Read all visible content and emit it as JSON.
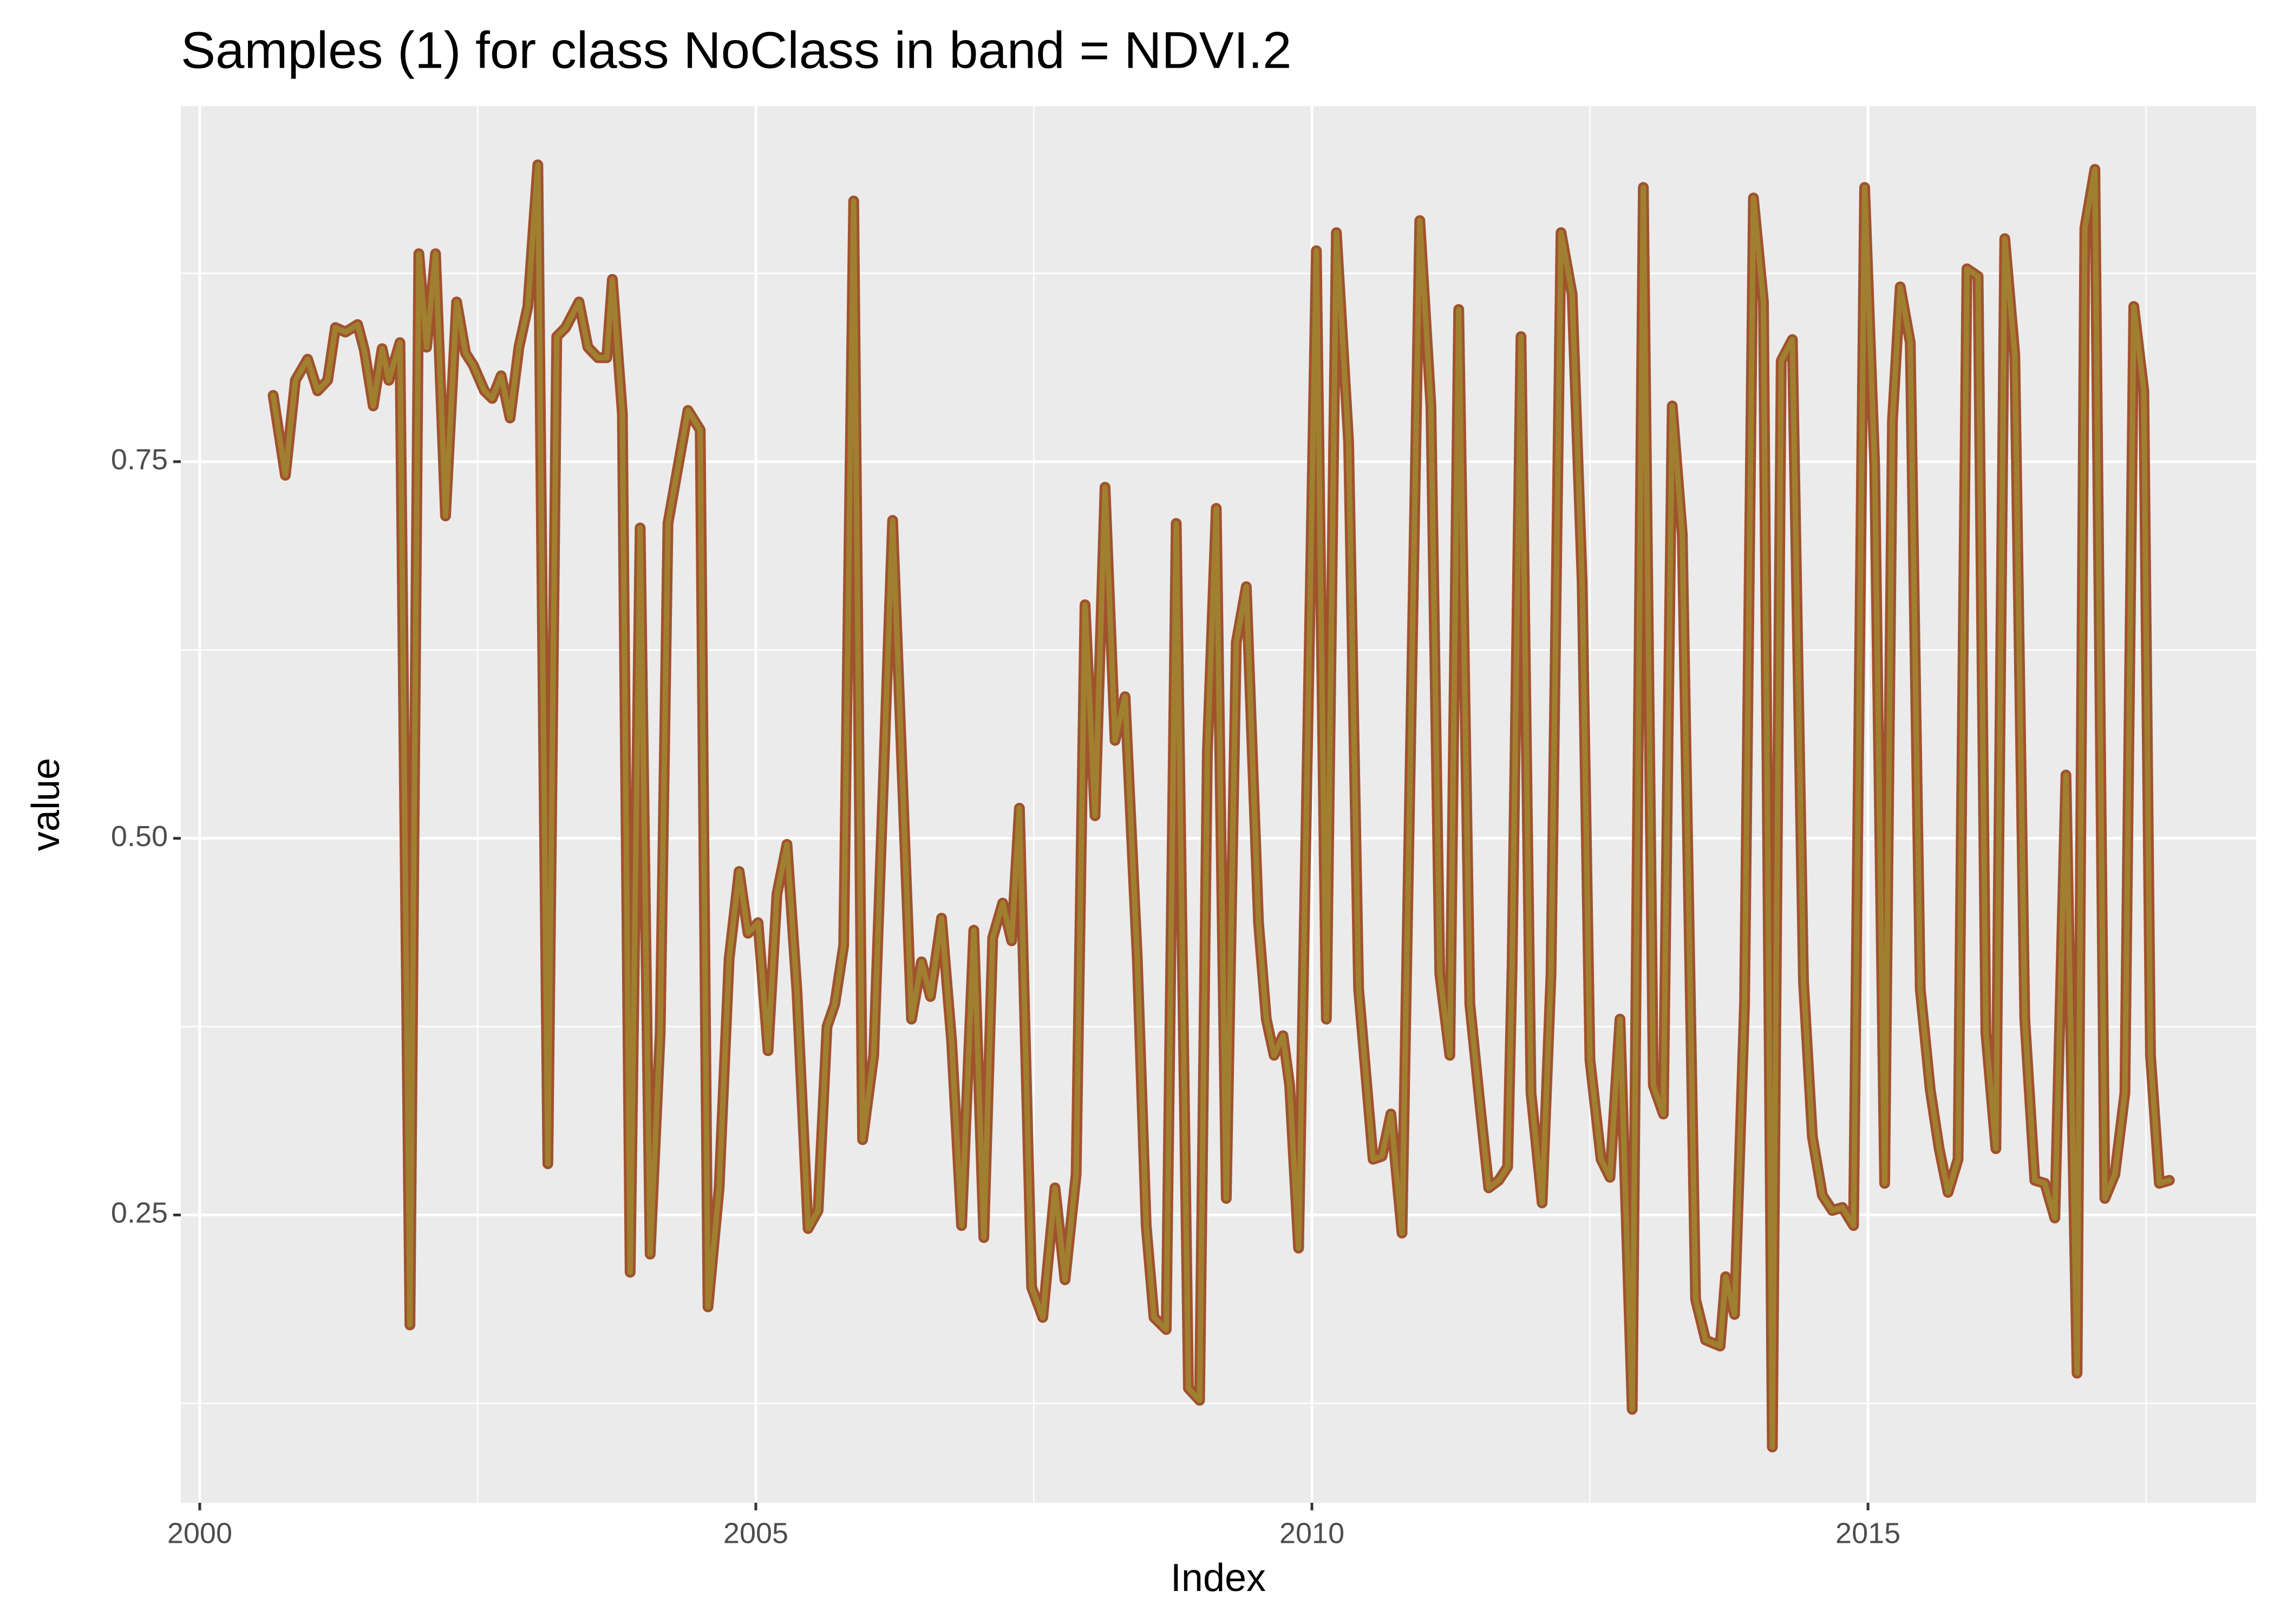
{
  "chart_data": {
    "type": "line",
    "title": "Samples (1) for class NoClass in band = NDVI.2",
    "xlabel": "Index",
    "ylabel": "value",
    "xlim": [
      1999.83,
      2018.49
    ],
    "ylim": [
      0.059,
      0.986
    ],
    "xticks": [
      2000,
      2005,
      2010,
      2015
    ],
    "yticks": [
      0.25,
      {
        "value": 0.5,
        "label": "0.50"
      },
      0.75
    ],
    "x_minor_ticks": [
      2002.5,
      2007.5,
      2012.5,
      2017.5
    ],
    "y_minor_ticks": [
      0.125,
      0.375,
      0.625,
      0.875
    ],
    "grid": true,
    "series": [
      {
        "name": "NDVI.2",
        "color": "#a08030",
        "edge_color": "#a0522d",
        "x": [
          2000.66,
          2000.77,
          2000.86,
          2000.97,
          2001.06,
          2001.15,
          2001.22,
          2001.31,
          2001.42,
          2001.48,
          2001.56,
          2001.64,
          2001.7,
          2001.8,
          2001.89,
          2001.97,
          2002.04,
          2002.12,
          2002.21,
          2002.31,
          2002.39,
          2002.46,
          2002.56,
          2002.63,
          2002.71,
          2002.79,
          2002.87,
          2002.95,
          2003.04,
          2003.13,
          2003.21,
          2003.29,
          2003.41,
          2003.49,
          2003.58,
          2003.66,
          2003.71,
          2003.8,
          2003.87,
          2003.96,
          2004.05,
          2004.14,
          2004.21,
          2004.39,
          2004.5,
          2004.57,
          2004.67,
          2004.76,
          2004.85,
          2004.93,
          2005.02,
          2005.11,
          2005.19,
          2005.28,
          2005.37,
          2005.47,
          2005.56,
          2005.64,
          2005.71,
          2005.79,
          2005.88,
          2005.96,
          2006.06,
          2006.23,
          2006.4,
          2006.49,
          2006.57,
          2006.67,
          2006.76,
          2006.85,
          2006.96,
          2007.05,
          2007.13,
          2007.22,
          2007.3,
          2007.37,
          2007.48,
          2007.58,
          2007.69,
          2007.78,
          2007.88,
          2007.96,
          2008.05,
          2008.14,
          2008.23,
          2008.32,
          2008.43,
          2008.51,
          2008.58,
          2008.69,
          2008.78,
          2008.89,
          2008.99,
          2009.06,
          2009.14,
          2009.23,
          2009.32,
          2009.41,
          2009.52,
          2009.59,
          2009.66,
          2009.74,
          2009.8,
          2009.88,
          2010.04,
          2010.13,
          2010.22,
          2010.33,
          2010.42,
          2010.55,
          2010.63,
          2010.71,
          2010.81,
          2010.97,
          2011.07,
          2011.15,
          2011.24,
          2011.32,
          2011.42,
          2011.51,
          2011.59,
          2011.68,
          2011.76,
          2011.8,
          2011.88,
          2011.97,
          2012.07,
          2012.15,
          2012.24,
          2012.34,
          2012.43,
          2012.5,
          2012.6,
          2012.68,
          2012.77,
          2012.88,
          2012.98,
          2013.07,
          2013.16,
          2013.24,
          2013.33,
          2013.45,
          2013.54,
          2013.67,
          2013.72,
          2013.8,
          2013.89,
          2013.97,
          2014.06,
          2014.14,
          2014.22,
          2014.32,
          2014.42,
          2014.5,
          2014.59,
          2014.68,
          2014.77,
          2014.87,
          2014.97,
          2015.06,
          2015.15,
          2015.22,
          2015.29,
          2015.38,
          2015.47,
          2015.56,
          2015.64,
          2015.72,
          2015.81,
          2015.89,
          2015.99,
          2016.06,
          2016.15,
          2016.23,
          2016.32,
          2016.41,
          2016.5,
          2016.59,
          2016.68,
          2016.78,
          2016.88,
          2016.95,
          2017.04,
          2017.13,
          2017.22,
          2017.31,
          2017.39,
          2017.48,
          2017.54,
          2017.62,
          2017.71
        ],
        "values": [
          0.794,
          0.741,
          0.804,
          0.818,
          0.797,
          0.804,
          0.839,
          0.836,
          0.841,
          0.824,
          0.787,
          0.825,
          0.804,
          0.829,
          0.177,
          0.888,
          0.826,
          0.888,
          0.714,
          0.856,
          0.822,
          0.814,
          0.797,
          0.792,
          0.807,
          0.779,
          0.826,
          0.853,
          0.947,
          0.284,
          0.833,
          0.839,
          0.856,
          0.826,
          0.819,
          0.819,
          0.871,
          0.782,
          0.212,
          0.706,
          0.224,
          0.371,
          0.709,
          0.784,
          0.771,
          0.189,
          0.268,
          0.42,
          0.478,
          0.437,
          0.444,
          0.359,
          0.463,
          0.496,
          0.398,
          0.241,
          0.253,
          0.375,
          0.39,
          0.429,
          0.923,
          0.3,
          0.356,
          0.711,
          0.38,
          0.418,
          0.395,
          0.447,
          0.366,
          0.243,
          0.439,
          0.235,
          0.434,
          0.457,
          0.432,
          0.52,
          0.202,
          0.182,
          0.268,
          0.207,
          0.277,
          0.655,
          0.515,
          0.733,
          0.565,
          0.594,
          0.42,
          0.243,
          0.182,
          0.174,
          0.709,
          0.135,
          0.127,
          0.557,
          0.719,
          0.261,
          0.63,
          0.667,
          0.444,
          0.38,
          0.356,
          0.369,
          0.336,
          0.228,
          0.89,
          0.38,
          0.902,
          0.763,
          0.4,
          0.287,
          0.289,
          0.317,
          0.238,
          0.91,
          0.787,
          0.41,
          0.356,
          0.851,
          0.39,
          0.324,
          0.268,
          0.273,
          0.282,
          0.415,
          0.833,
          0.331,
          0.258,
          0.41,
          0.902,
          0.861,
          0.67,
          0.353,
          0.287,
          0.275,
          0.38,
          0.121,
          0.932,
          0.336,
          0.317,
          0.787,
          0.702,
          0.194,
          0.167,
          0.163,
          0.209,
          0.184,
          0.39,
          0.925,
          0.856,
          0.096,
          0.817,
          0.831,
          0.405,
          0.302,
          0.263,
          0.253,
          0.255,
          0.243,
          0.932,
          0.748,
          0.271,
          0.777,
          0.866,
          0.829,
          0.4,
          0.333,
          0.294,
          0.265,
          0.287,
          0.878,
          0.873,
          0.371,
          0.294,
          0.898,
          0.821,
          0.38,
          0.273,
          0.271,
          0.248,
          0.542,
          0.145,
          0.905,
          0.944,
          0.261,
          0.277,
          0.331,
          0.853,
          0.797,
          0.356,
          0.271,
          0.273
        ]
      }
    ]
  }
}
